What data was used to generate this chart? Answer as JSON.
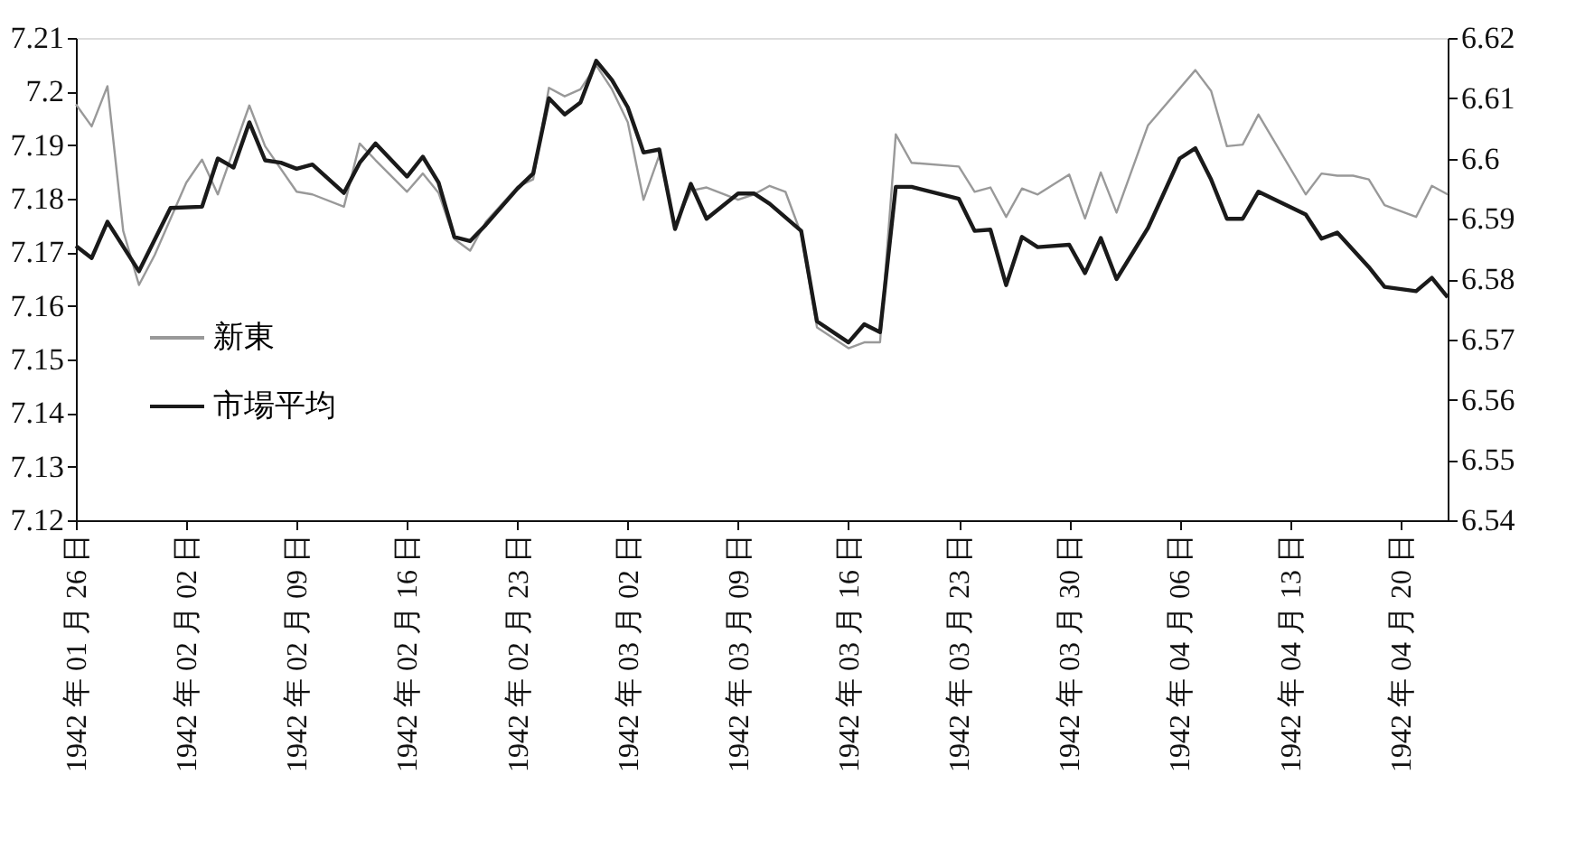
{
  "chart_data": {
    "type": "line",
    "xlim": [
      "1942-01-26",
      "1942-04-23"
    ],
    "xticks": [
      {
        "value": "1942-01-26",
        "label": "1942 年 01 月 26 日"
      },
      {
        "value": "1942-02-02",
        "label": "1942 年 02 月 02 日"
      },
      {
        "value": "1942-02-09",
        "label": "1942 年 02 月 09 日"
      },
      {
        "value": "1942-02-16",
        "label": "1942 年 02 月 16 日"
      },
      {
        "value": "1942-02-23",
        "label": "1942 年 02 月 23 日"
      },
      {
        "value": "1942-03-02",
        "label": "1942 年 03 月 02 日"
      },
      {
        "value": "1942-03-09",
        "label": "1942 年 03 月 09 日"
      },
      {
        "value": "1942-03-16",
        "label": "1942 年 03 月 16 日"
      },
      {
        "value": "1942-03-23",
        "label": "1942 年 03 月 23 日"
      },
      {
        "value": "1942-03-30",
        "label": "1942 年 03 月 30 日"
      },
      {
        "value": "1942-04-06",
        "label": "1942 年 04 月 06 日"
      },
      {
        "value": "1942-04-13",
        "label": "1942 年 04 月 13 日"
      },
      {
        "value": "1942-04-20",
        "label": "1942 年 04 月 20 日"
      }
    ],
    "ylim": [
      7.12,
      7.21
    ],
    "yticks": [
      7.12,
      7.13,
      7.14,
      7.15,
      7.16,
      7.17,
      7.18,
      7.19,
      7.2,
      7.21
    ],
    "y2lim": [
      6.54,
      6.62
    ],
    "y2ticks": [
      6.54,
      6.55,
      6.56,
      6.57,
      6.58,
      6.59,
      6.6,
      6.61,
      6.62
    ],
    "grid": false,
    "legend": "left",
    "line_style": "solid",
    "marker": "none",
    "series": [
      {
        "name": "新東",
        "color": "#999999",
        "axis": "y",
        "x": [
          "1942-01-26",
          "1942-01-27",
          "1942-01-28",
          "1942-01-29",
          "1942-01-30",
          "1942-01-31",
          "1942-02-02",
          "1942-02-03",
          "1942-02-04",
          "1942-02-06",
          "1942-02-07",
          "1942-02-09",
          "1942-02-10",
          "1942-02-12",
          "1942-02-13",
          "1942-02-14",
          "1942-02-16",
          "1942-02-17",
          "1942-02-18",
          "1942-02-19",
          "1942-02-20",
          "1942-02-21",
          "1942-02-23",
          "1942-02-24",
          "1942-02-25",
          "1942-02-26",
          "1942-02-27",
          "1942-02-28",
          "1942-03-01",
          "1942-03-02",
          "1942-03-03",
          "1942-03-04",
          "1942-03-05",
          "1942-03-06",
          "1942-03-07",
          "1942-03-09",
          "1942-03-10",
          "1942-03-11",
          "1942-03-12",
          "1942-03-13",
          "1942-03-14",
          "1942-03-16",
          "1942-03-17",
          "1942-03-18",
          "1942-03-19",
          "1942-03-20",
          "1942-03-23",
          "1942-03-24",
          "1942-03-25",
          "1942-03-26",
          "1942-03-27",
          "1942-03-28",
          "1942-03-30",
          "1942-03-31",
          "1942-04-01",
          "1942-04-02",
          "1942-04-04",
          "1942-04-07",
          "1942-04-08",
          "1942-04-09",
          "1942-04-10",
          "1942-04-11",
          "1942-04-14",
          "1942-04-15",
          "1942-04-16",
          "1942-04-17",
          "1942-04-18",
          "1942-04-19",
          "1942-04-21",
          "1942-04-22",
          "1942-04-23"
        ],
        "values": [
          7.1976,
          7.1935,
          7.201,
          7.174,
          7.1639,
          7.1695,
          7.183,
          7.1873,
          7.1808,
          7.1974,
          7.1898,
          7.1813,
          7.1808,
          7.1785,
          7.1903,
          7.1872,
          7.1813,
          7.1847,
          7.1811,
          7.1725,
          7.1703,
          7.1757,
          7.1822,
          7.1836,
          7.2007,
          7.1991,
          7.2004,
          7.2049,
          7.2004,
          7.1943,
          7.1798,
          7.1881,
          7.1751,
          7.1815,
          7.1821,
          7.1798,
          7.1808,
          7.1824,
          7.1813,
          7.1734,
          7.156,
          7.1521,
          7.1532,
          7.1532,
          7.192,
          7.1867,
          7.186,
          7.1813,
          7.1821,
          7.1766,
          7.1819,
          7.1808,
          7.1845,
          7.1763,
          7.1849,
          7.1774,
          7.1937,
          7.204,
          7.2001,
          7.1898,
          7.1901,
          7.1957,
          7.1808,
          7.1847,
          7.1843,
          7.1843,
          7.1836,
          7.1788,
          7.1766,
          7.1824,
          7.1808
        ]
      },
      {
        "name": "市場平均",
        "color": "#1a1a1a",
        "axis": "y2",
        "x": [
          "1942-01-26",
          "1942-01-27",
          "1942-01-28",
          "1942-01-30",
          "1942-02-01",
          "1942-02-03",
          "1942-02-04",
          "1942-02-05",
          "1942-02-06",
          "1942-02-07",
          "1942-02-08",
          "1942-02-09",
          "1942-02-10",
          "1942-02-12",
          "1942-02-13",
          "1942-02-14",
          "1942-02-16",
          "1942-02-17",
          "1942-02-18",
          "1942-02-19",
          "1942-02-20",
          "1942-02-21",
          "1942-02-23",
          "1942-02-24",
          "1942-02-25",
          "1942-02-26",
          "1942-02-27",
          "1942-02-28",
          "1942-03-01",
          "1942-03-02",
          "1942-03-03",
          "1942-03-04",
          "1942-03-05",
          "1942-03-06",
          "1942-03-07",
          "1942-03-09",
          "1942-03-10",
          "1942-03-11",
          "1942-03-13",
          "1942-03-14",
          "1942-03-16",
          "1942-03-17",
          "1942-03-18",
          "1942-03-19",
          "1942-03-20",
          "1942-03-23",
          "1942-03-24",
          "1942-03-25",
          "1942-03-26",
          "1942-03-27",
          "1942-03-28",
          "1942-03-30",
          "1942-03-31",
          "1942-04-01",
          "1942-04-02",
          "1942-04-04",
          "1942-04-06",
          "1942-04-07",
          "1942-04-08",
          "1942-04-09",
          "1942-04-10",
          "1942-04-11",
          "1942-04-14",
          "1942-04-15",
          "1942-04-16",
          "1942-04-18",
          "1942-04-19",
          "1942-04-21",
          "1942-04-22",
          "1942-04-23"
        ],
        "values": [
          6.5855,
          6.5835,
          6.5895,
          6.5813,
          6.5918,
          6.592,
          6.6,
          6.5985,
          6.606,
          6.5997,
          6.5993,
          6.5983,
          6.599,
          6.5943,
          6.5993,
          6.6025,
          6.597,
          6.6003,
          6.596,
          6.587,
          6.5863,
          6.589,
          6.595,
          6.5975,
          6.61,
          6.6073,
          6.6093,
          6.6162,
          6.613,
          6.6085,
          6.601,
          6.6015,
          6.5883,
          6.5958,
          6.59,
          6.5942,
          6.5942,
          6.5925,
          6.588,
          6.573,
          6.5695,
          6.5725,
          6.5712,
          6.5953,
          6.5953,
          6.5933,
          6.588,
          6.5882,
          6.579,
          6.587,
          6.5853,
          6.5857,
          6.581,
          6.5868,
          6.58,
          6.5885,
          6.6,
          6.6017,
          6.5965,
          6.59,
          6.59,
          6.5945,
          6.5907,
          6.5867,
          6.5877,
          6.582,
          6.5787,
          6.578,
          6.5802,
          6.577
        ]
      }
    ]
  }
}
